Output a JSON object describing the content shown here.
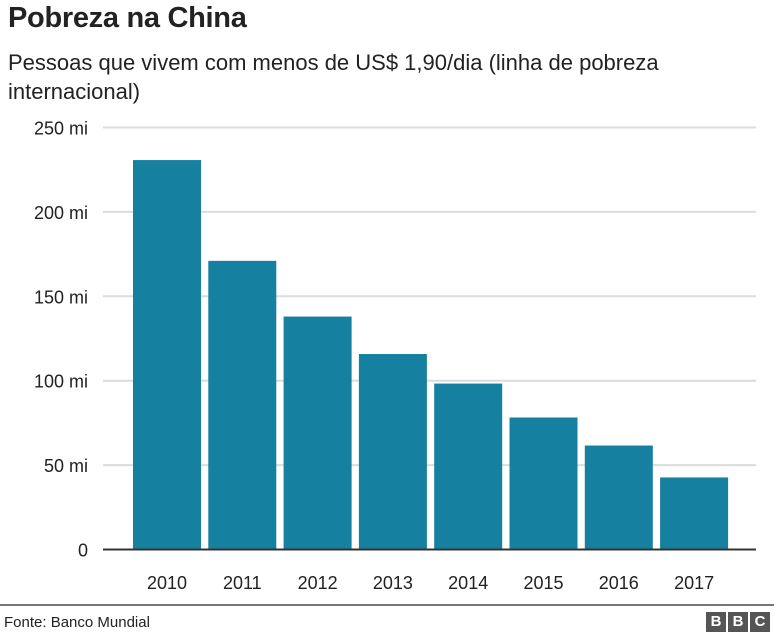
{
  "chart_data": {
    "type": "bar",
    "title": "Pobreza na China",
    "subtitle": "Pessoas que vivem com menos de US$ 1,90/dia (linha de pobreza internacional)",
    "categories": [
      "2010",
      "2011",
      "2012",
      "2013",
      "2014",
      "2015",
      "2016",
      "2017"
    ],
    "values": [
      230.7,
      171,
      138,
      115.8,
      98.3,
      78.2,
      61.6,
      42.7
    ],
    "unit": "milhões",
    "ylim": [
      0,
      250
    ],
    "yticks": [
      0,
      50,
      100,
      150,
      200,
      250
    ],
    "ytick_labels": [
      "0",
      "50 mi",
      "100 mi",
      "150 mi",
      "200 mi",
      "250 mi"
    ],
    "xlabel": "",
    "ylabel": "",
    "grid": true,
    "bar_color": "#1580a0"
  },
  "footer": {
    "source": "Fonte: Banco Mundial",
    "logo_letters": [
      "B",
      "B",
      "C"
    ]
  }
}
